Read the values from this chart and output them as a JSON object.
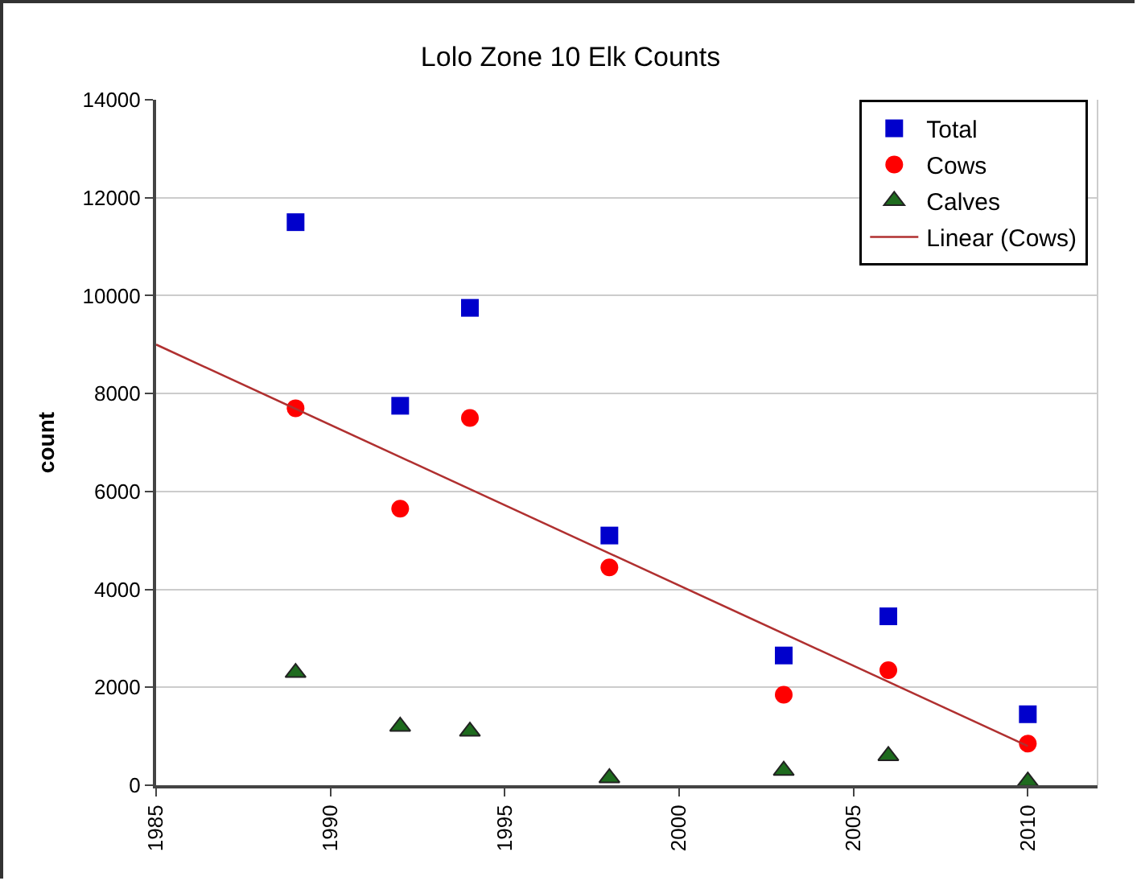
{
  "chart_data": {
    "type": "scatter",
    "title": "Lolo Zone 10 Elk Counts",
    "ylabel": "count",
    "x": [
      1989,
      1992,
      1994,
      1998,
      2003,
      2006,
      2010
    ],
    "series": [
      {
        "name": "Total",
        "color": "#0000cc",
        "marker": "square",
        "values": [
          11500,
          7750,
          9750,
          5100,
          2650,
          3450,
          1450
        ]
      },
      {
        "name": "Cows",
        "color": "#ff0000",
        "marker": "circle",
        "values": [
          7700,
          5650,
          7500,
          4450,
          1850,
          2350,
          850
        ]
      },
      {
        "name": "Calves",
        "color": "#1e6b1e",
        "marker": "triangle",
        "values": [
          2300,
          1200,
          1100,
          150,
          300,
          600,
          80
        ]
      },
      {
        "name": "Linear (Cows)",
        "type": "line",
        "color": "#b03030",
        "x": [
          1985,
          2010
        ],
        "values": [
          9000,
          800
        ]
      }
    ],
    "xlim": [
      1985,
      2012
    ],
    "xticks": [
      1985,
      1990,
      1995,
      2000,
      2005,
      2010
    ],
    "ylim": [
      0,
      14000
    ],
    "yticks": [
      0,
      2000,
      4000,
      6000,
      8000,
      10000,
      12000,
      14000
    ],
    "grid": "y",
    "legend": "top right"
  }
}
